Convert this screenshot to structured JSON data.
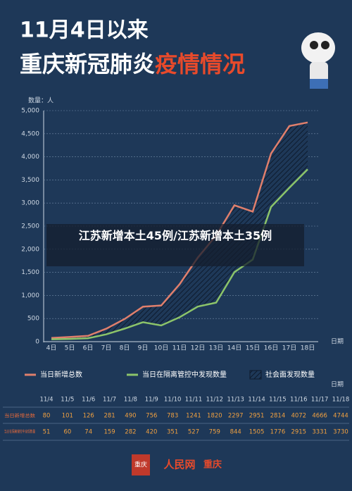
{
  "header": {
    "subtitle": "11月4日以来",
    "title_main": "重庆新冠肺炎",
    "title_accent": "疫情情况"
  },
  "chart_data": {
    "type": "line",
    "y_label": "数量：人",
    "x_label": "日期",
    "categories": [
      "4日",
      "5日",
      "6日",
      "7日",
      "8日",
      "9日",
      "10日",
      "11日",
      "12日",
      "13日",
      "14日",
      "15日",
      "16日",
      "17日",
      "18日"
    ],
    "series": [
      {
        "name": "当日新增总数",
        "color": "#e07f6c",
        "values": [
          80,
          101,
          126,
          281,
          490,
          756,
          783,
          1241,
          1820,
          2297,
          2951,
          2814,
          4072,
          4666,
          4744
        ]
      },
      {
        "name": "当日在隔离管控中发现数量",
        "color": "#8cc46a",
        "values": [
          51,
          60,
          74,
          159,
          282,
          420,
          351,
          527,
          759,
          844,
          1505,
          1776,
          2915,
          3331,
          3730
        ]
      }
    ],
    "area_label": "社会面发现数量",
    "ylim": [
      0,
      5000
    ],
    "yticks": [
      0,
      500,
      {
        "value": 1000,
        "label": "1,000"
      },
      {
        "value": 1500,
        "label": "1,500"
      },
      {
        "value": 2000,
        "label": "2,000"
      },
      {
        "value": 2500,
        "label": "2,500"
      },
      {
        "value": 3000,
        "label": "3,000"
      },
      {
        "value": 3500,
        "label": "3,500"
      },
      {
        "value": 4000,
        "label": "4,000"
      },
      {
        "value": 4500,
        "label": "4,500"
      },
      {
        "value": 5000,
        "label": "5,000"
      }
    ],
    "grid": true
  },
  "table": {
    "header": "日期",
    "dates": [
      "11/4",
      "11/5",
      "11/6",
      "11/7",
      "11/8",
      "11/9",
      "11/10",
      "11/11",
      "11/12",
      "11/13",
      "11/14",
      "11/15",
      "11/16",
      "11/17",
      "11/18"
    ]
  },
  "overlay": {
    "text": "江苏新增本土45例/江苏新增本土35例"
  },
  "footer": {
    "logo": "重庆",
    "brand": "人民网",
    "region": "重庆"
  }
}
